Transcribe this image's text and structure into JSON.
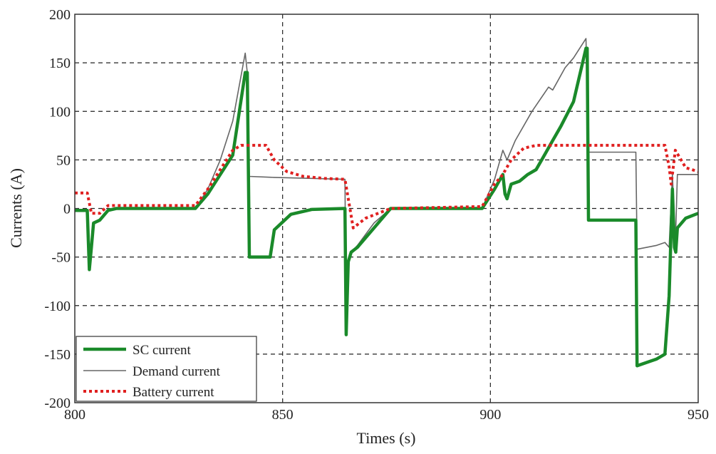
{
  "chart_data": {
    "type": "line",
    "title": "",
    "xlabel": "Times (s)",
    "ylabel": "Currents (A)",
    "xlim": [
      800,
      950
    ],
    "ylim": [
      -200,
      200
    ],
    "x_ticks": [
      800,
      850,
      900,
      950
    ],
    "y_ticks": [
      -200,
      -150,
      -100,
      -50,
      0,
      50,
      100,
      150,
      200
    ],
    "grid": true,
    "legend_position": "bottom-left",
    "series": [
      {
        "name": "SC current",
        "color": "#1a8a2a",
        "style": "solid-thick",
        "points": [
          [
            800,
            -2
          ],
          [
            803,
            -2
          ],
          [
            803.5,
            -63
          ],
          [
            804,
            -40
          ],
          [
            804.5,
            -15
          ],
          [
            806,
            -12
          ],
          [
            808,
            -2
          ],
          [
            810,
            0
          ],
          [
            829,
            0
          ],
          [
            832,
            15
          ],
          [
            835,
            35
          ],
          [
            838,
            55
          ],
          [
            841,
            140
          ],
          [
            841.5,
            140
          ],
          [
            842,
            -50
          ],
          [
            847,
            -50
          ],
          [
            848,
            -22
          ],
          [
            852,
            -6
          ],
          [
            857,
            -1
          ],
          [
            865,
            0
          ],
          [
            865.3,
            -130
          ],
          [
            865.8,
            -55
          ],
          [
            866.5,
            -45
          ],
          [
            868,
            -40
          ],
          [
            872,
            -20
          ],
          [
            876,
            0
          ],
          [
            898,
            0
          ],
          [
            901,
            20
          ],
          [
            903,
            35
          ],
          [
            903.5,
            15
          ],
          [
            904,
            10
          ],
          [
            905,
            25
          ],
          [
            907,
            28
          ],
          [
            909,
            35
          ],
          [
            911,
            40
          ],
          [
            913,
            55
          ],
          [
            915,
            70
          ],
          [
            917,
            85
          ],
          [
            920,
            110
          ],
          [
            923,
            165
          ],
          [
            923.3,
            165
          ],
          [
            923.6,
            -12
          ],
          [
            934,
            -12
          ],
          [
            935,
            -12
          ],
          [
            935.3,
            -162
          ],
          [
            940,
            -155
          ],
          [
            942,
            -150
          ],
          [
            943,
            -90
          ],
          [
            943.8,
            20
          ],
          [
            944.3,
            -40
          ],
          [
            944.6,
            -45
          ],
          [
            945,
            -20
          ],
          [
            947,
            -10
          ],
          [
            950,
            -5
          ]
        ]
      },
      {
        "name": "Demand current",
        "color": "#666666",
        "style": "solid-thin",
        "points": [
          [
            800,
            -2
          ],
          [
            803,
            -2
          ],
          [
            803.5,
            -63
          ],
          [
            804,
            -40
          ],
          [
            804.5,
            -15
          ],
          [
            806,
            -12
          ],
          [
            808,
            -2
          ],
          [
            810,
            0
          ],
          [
            829,
            0
          ],
          [
            832,
            20
          ],
          [
            835,
            50
          ],
          [
            838,
            90
          ],
          [
            841,
            160
          ],
          [
            841.5,
            140
          ],
          [
            842,
            33
          ],
          [
            848,
            32
          ],
          [
            857,
            31
          ],
          [
            865,
            30
          ],
          [
            865.3,
            -130
          ],
          [
            865.8,
            -55
          ],
          [
            866.5,
            -45
          ],
          [
            868,
            -38
          ],
          [
            872,
            -15
          ],
          [
            876,
            0
          ],
          [
            898,
            0
          ],
          [
            901,
            30
          ],
          [
            903,
            60
          ],
          [
            904,
            50
          ],
          [
            906,
            70
          ],
          [
            910,
            100
          ],
          [
            914,
            125
          ],
          [
            915,
            122
          ],
          [
            918,
            145
          ],
          [
            920,
            155
          ],
          [
            923,
            175
          ],
          [
            923.6,
            58
          ],
          [
            935,
            58
          ],
          [
            935.3,
            -42
          ],
          [
            940,
            -38
          ],
          [
            942,
            -35
          ],
          [
            943,
            -40
          ],
          [
            943.8,
            35
          ],
          [
            944.5,
            -38
          ],
          [
            945,
            35
          ],
          [
            950,
            35
          ]
        ]
      },
      {
        "name": "Battery current",
        "color": "#e02020",
        "style": "dotted-thick",
        "points": [
          [
            800,
            16
          ],
          [
            803,
            16
          ],
          [
            804,
            -5
          ],
          [
            806,
            -5
          ],
          [
            808,
            3
          ],
          [
            810,
            3
          ],
          [
            829,
            3
          ],
          [
            832,
            20
          ],
          [
            835,
            40
          ],
          [
            838,
            60
          ],
          [
            840,
            65
          ],
          [
            846,
            65
          ],
          [
            848,
            50
          ],
          [
            851,
            38
          ],
          [
            855,
            33
          ],
          [
            860,
            31
          ],
          [
            865,
            30
          ],
          [
            867,
            -20
          ],
          [
            870,
            -10
          ],
          [
            876,
            0
          ],
          [
            898,
            2
          ],
          [
            901,
            25
          ],
          [
            903,
            35
          ],
          [
            905,
            50
          ],
          [
            908,
            62
          ],
          [
            911,
            65
          ],
          [
            920,
            65
          ],
          [
            935,
            65
          ],
          [
            942,
            65
          ],
          [
            943,
            43
          ],
          [
            943.5,
            25
          ],
          [
            944.5,
            60
          ],
          [
            947,
            42
          ],
          [
            950,
            38
          ]
        ]
      }
    ]
  }
}
